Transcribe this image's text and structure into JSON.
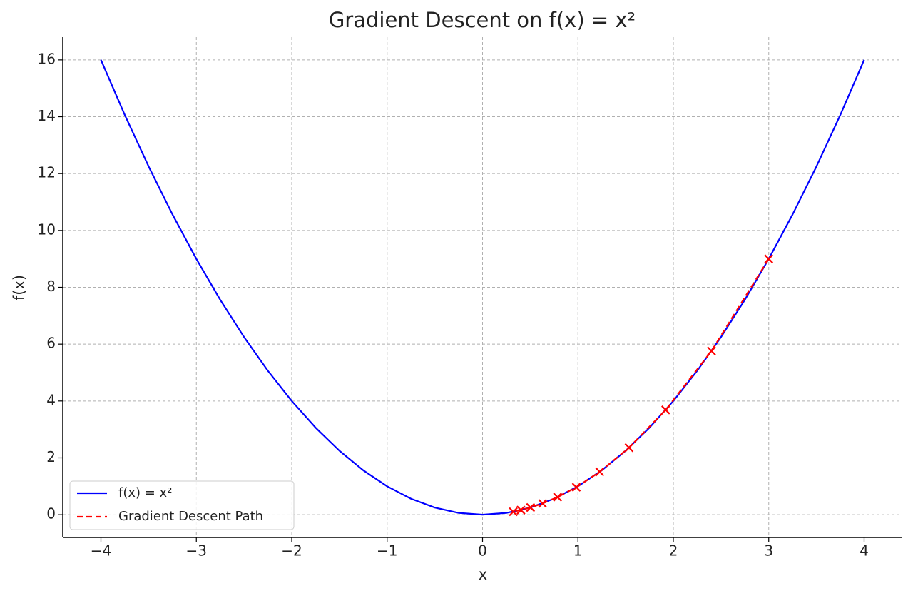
{
  "chart_data": {
    "type": "line",
    "title": "Gradient Descent on f(x) = x²",
    "x_label": "x",
    "y_label": "f(x)",
    "xlim": [
      -4.4,
      4.4
    ],
    "ylim": [
      -0.8,
      16.8
    ],
    "xticks": [
      {
        "value": -4,
        "label": "−4"
      },
      {
        "value": -3,
        "label": "−3"
      },
      {
        "value": -2,
        "label": "−2"
      },
      {
        "value": -1,
        "label": "−1"
      },
      0,
      1,
      2,
      3,
      4
    ],
    "yticks": [
      0,
      2,
      4,
      6,
      8,
      10,
      12,
      14,
      16
    ],
    "grid": true,
    "legend": "lower left",
    "series": [
      {
        "name": "f(x) = x²",
        "color": "#0000ff",
        "linestyle": "solid",
        "marker": null,
        "x": [
          -4,
          -3.75,
          -3.5,
          -3.25,
          -3,
          -2.75,
          -2.5,
          -2.25,
          -2,
          -1.75,
          -1.5,
          -1.25,
          -1,
          -0.75,
          -0.5,
          -0.25,
          0,
          0.25,
          0.5,
          0.75,
          1,
          1.25,
          1.5,
          1.75,
          2,
          2.25,
          2.5,
          2.75,
          3,
          3.25,
          3.5,
          3.75,
          4
        ],
        "values": [
          16,
          14.0625,
          12.25,
          10.5625,
          9,
          7.5625,
          6.25,
          5.0625,
          4,
          3.0625,
          2.25,
          1.5625,
          1,
          0.5625,
          0.25,
          0.0625,
          0,
          0.0625,
          0.25,
          0.5625,
          1,
          1.5625,
          2.25,
          3.0625,
          4,
          5.0625,
          6.25,
          7.5625,
          9,
          10.5625,
          12.25,
          14.0625,
          16
        ]
      },
      {
        "name": "Gradient Descent Path",
        "color": "#ff0000",
        "linestyle": "dashed",
        "marker": "x",
        "x": [
          3,
          2.4,
          1.92,
          1.536,
          1.2288,
          0.983,
          0.7864,
          0.6291,
          0.5033,
          0.4027,
          0.3221
        ],
        "values": [
          9,
          5.76,
          3.6864,
          2.3593,
          1.51,
          0.9664,
          0.6185,
          0.3958,
          0.2533,
          0.1621,
          0.1038
        ]
      }
    ]
  }
}
